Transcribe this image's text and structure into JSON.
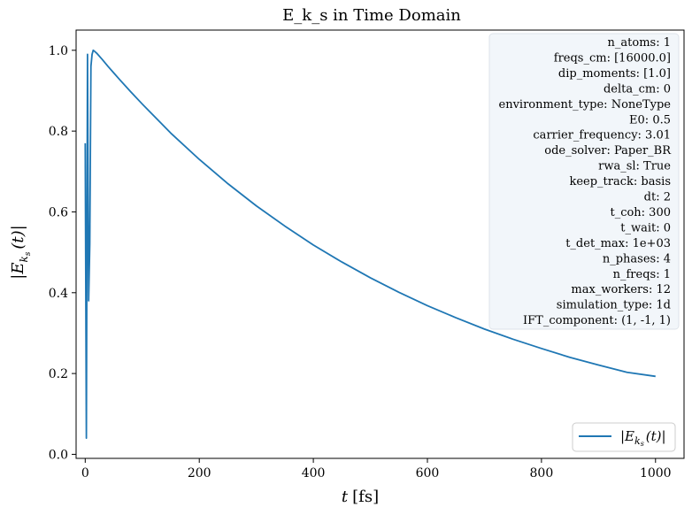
{
  "chart_data": {
    "type": "line",
    "title": "E_k_s in Time Domain",
    "xlabel": "t [fs]",
    "ylabel": "|E_{k_s}(t)|",
    "xlim": [
      -16,
      1050
    ],
    "ylim": [
      -0.01,
      1.05
    ],
    "xticks": [
      0,
      200,
      400,
      600,
      800,
      1000
    ],
    "yticks": [
      0.0,
      0.2,
      0.4,
      0.6,
      0.8,
      1.0
    ],
    "xtick_labels": [
      "0",
      "200",
      "400",
      "600",
      "800",
      "1000"
    ],
    "ytick_labels": [
      "0.0",
      "0.2",
      "0.4",
      "0.6",
      "0.8",
      "1.0"
    ],
    "grid": false,
    "legend_position": "bottom-right",
    "info_box_position": "top-right",
    "series": [
      {
        "name": "|E_{k_s}(t)|",
        "color": "#1f77b4",
        "x": [
          0,
          2,
          4,
          6,
          8,
          10,
          12,
          14,
          16,
          20,
          30,
          40,
          50,
          60,
          80,
          100,
          150,
          200,
          250,
          300,
          350,
          400,
          450,
          500,
          550,
          600,
          650,
          700,
          750,
          800,
          850,
          900,
          950,
          1000
        ],
        "y": [
          0.77,
          0.04,
          0.99,
          0.38,
          0.52,
          0.96,
          0.99,
          1.0,
          0.998,
          0.993,
          0.977,
          0.96,
          0.944,
          0.928,
          0.897,
          0.867,
          0.795,
          0.73,
          0.67,
          0.615,
          0.565,
          0.518,
          0.476,
          0.437,
          0.401,
          0.368,
          0.338,
          0.31,
          0.285,
          0.262,
          0.24,
          0.221,
          0.203,
          0.193
        ]
      }
    ]
  },
  "legend": {
    "prefix": "|E",
    "subscript": "k",
    "subsubscript": "s",
    "suffix": "(t)|"
  },
  "axis_labels": {
    "x_var": "t",
    "x_unit": "[fs]",
    "y_prefix": "|E",
    "y_sub": "k",
    "y_subsub": "s",
    "y_suffix": "(t)|"
  },
  "info_box": [
    "n_atoms: 1",
    "freqs_cm: [16000.0]",
    "dip_moments: [1.0]",
    "delta_cm: 0",
    "environment_type: NoneType",
    "E0: 0.5",
    "carrier_frequency: 3.01",
    "ode_solver: Paper_BR",
    "rwa_sl: True",
    "keep_track: basis",
    "dt: 2",
    "t_coh: 300",
    "t_wait: 0",
    "t_det_max: 1e+03",
    "n_phases: 4",
    "n_freqs: 1",
    "max_workers: 12",
    "simulation_type: 1d",
    "IFT_component: (1, -1, 1)"
  ]
}
